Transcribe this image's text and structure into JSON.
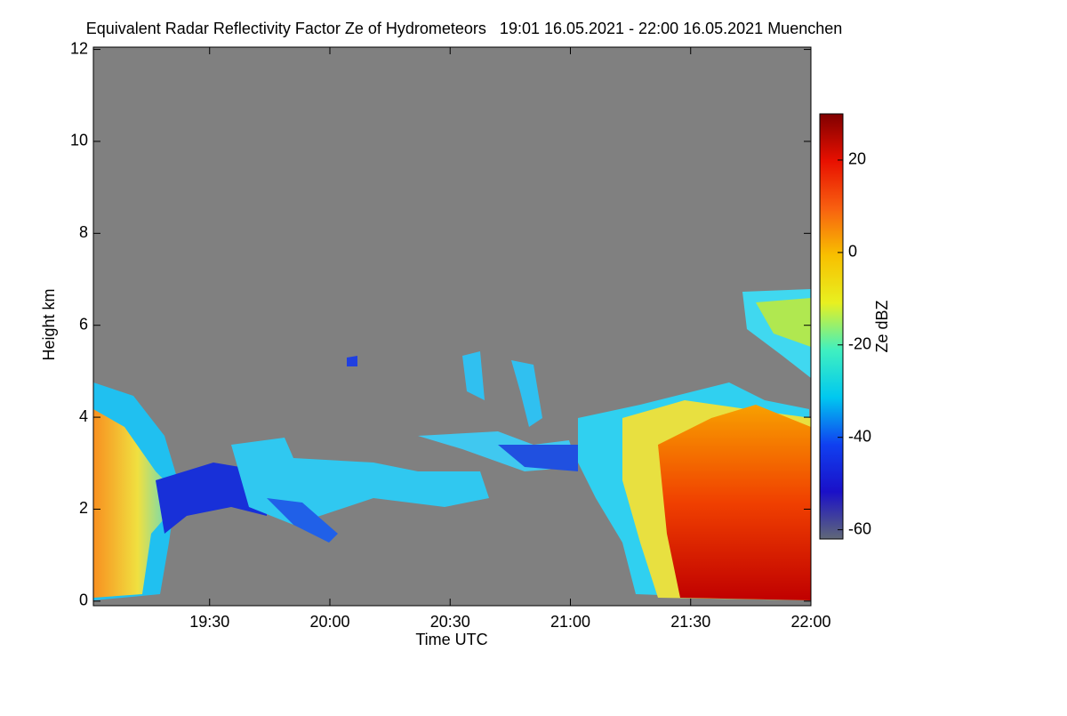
{
  "chart_data": {
    "type": "heatmap",
    "title": "Equivalent Radar Reflectivity Factor Ze of Hydrometeors   19:01 16.05.2021 - 22:00 16.05.2021 Muenchen",
    "x_label": "Time UTC",
    "y_label": "Height km",
    "colorbar_label": "Ze dBZ",
    "xlim": [
      "19:01",
      "22:00"
    ],
    "xticks": [
      "19:30",
      "20:00",
      "20:30",
      "21:00",
      "21:30",
      "22:00"
    ],
    "ylim": [
      -0.1,
      12.05
    ],
    "yticks": [
      0,
      2,
      4,
      6,
      8,
      10,
      12
    ],
    "zlim": [
      -62,
      30
    ],
    "zticks": [
      -60,
      -40,
      -20,
      0,
      20
    ],
    "colormap": [
      "#606878",
      "#1a10c8",
      "#1040f0",
      "#00c8f0",
      "#40f0c0",
      "#e8f020",
      "#f8c000",
      "#f86010",
      "#e81000",
      "#800000"
    ],
    "missing_color": "#808080"
  }
}
